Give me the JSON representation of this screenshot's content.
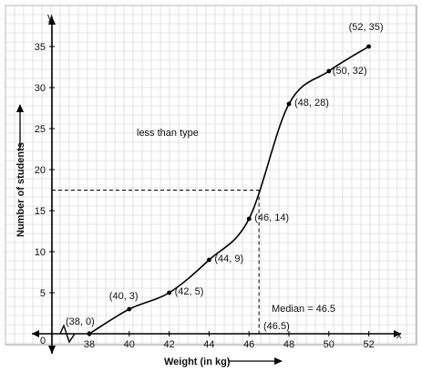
{
  "chart_data": {
    "type": "line",
    "title": "",
    "xlabel": "Weight (in kg)",
    "ylabel": "Number of students",
    "axis_letters": {
      "x": "x",
      "y": "y",
      "origin": "0"
    },
    "xticks": [
      38,
      40,
      42,
      44,
      46,
      48,
      50,
      52
    ],
    "yticks": [
      5,
      10,
      15,
      20,
      25,
      30,
      35
    ],
    "series": [
      {
        "values": [
          {
            "x": 38,
            "y": 0,
            "label": "(38, 0)"
          },
          {
            "x": 40,
            "y": 3,
            "label": "(40, 3)"
          },
          {
            "x": 42,
            "y": 5,
            "label": "(42, 5)"
          },
          {
            "x": 44,
            "y": 9,
            "label": "(44, 9)"
          },
          {
            "x": 46,
            "y": 14,
            "label": "(46, 14)"
          },
          {
            "x": 48,
            "y": 28,
            "label": "(48, 28)"
          },
          {
            "x": 50,
            "y": 32,
            "label": "(50, 32)"
          },
          {
            "x": 52,
            "y": 35,
            "label": "(52, 35)"
          }
        ]
      }
    ],
    "annotations": {
      "curve_label": "less than type",
      "median_text": "Median = 46.5",
      "median_value": 46.5,
      "median_y": 17.5,
      "median_tick_label": "(46.5)"
    },
    "grid": true,
    "axis_break": true
  }
}
